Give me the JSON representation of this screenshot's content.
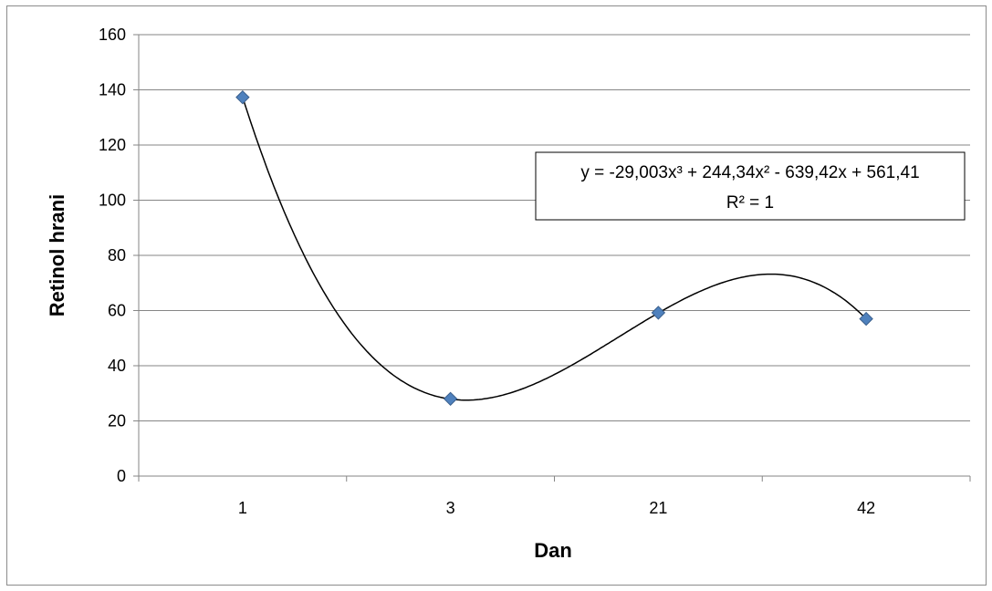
{
  "chart_data": {
    "type": "scatter",
    "xlabel": "Dan",
    "ylabel": "Retinol hrani",
    "categories": [
      "1",
      "3",
      "21",
      "42"
    ],
    "ylim": [
      0,
      160
    ],
    "y_ticks": [
      0,
      20,
      40,
      60,
      80,
      100,
      120,
      140,
      160
    ],
    "grid": true,
    "series": [
      {
        "values": [
          137.3,
          28.0,
          59.2,
          57.0
        ]
      }
    ],
    "trendline": {
      "type": "polynomial",
      "order": 3,
      "coefficients": [
        -29.003,
        244.34,
        -639.42,
        561.41
      ],
      "equation": "y = -29,003x³ + 244,34x² - 639,42x + 561,41",
      "r_squared": "R² = 1"
    },
    "colors": {
      "marker": "#4F81BD",
      "marker_edge": "#385D8A",
      "grid": "#868686",
      "trendline": "#000000"
    }
  }
}
